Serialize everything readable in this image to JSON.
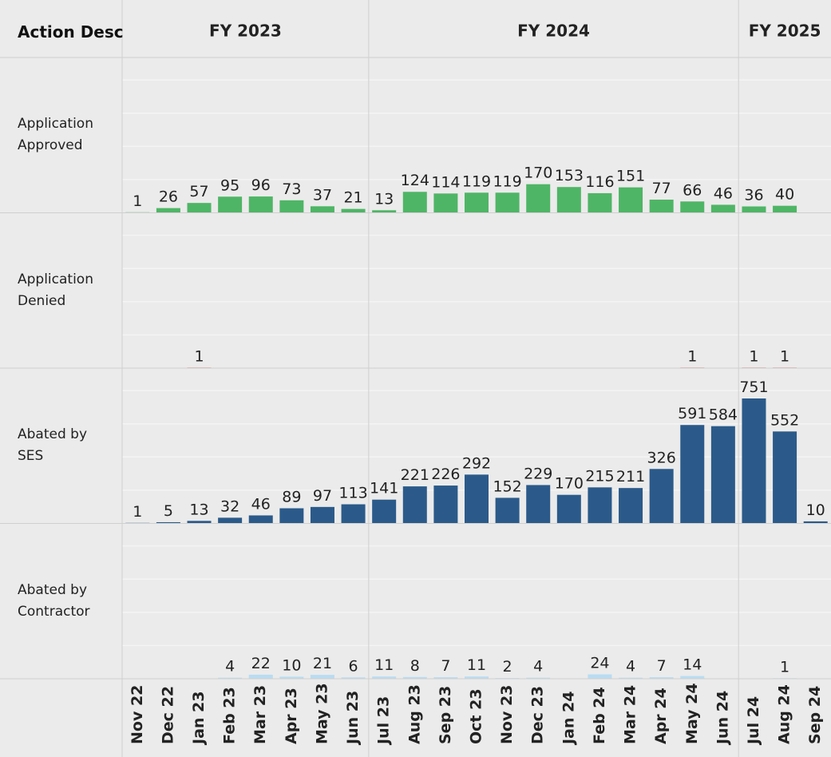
{
  "chart_data": {
    "type": "bar",
    "row_header": "Action Desc",
    "fiscal_years": [
      {
        "label": "FY 2023",
        "span": 8
      },
      {
        "label": "FY 2024",
        "span": 12
      },
      {
        "label": "FY 2025",
        "span": 3
      }
    ],
    "categories": [
      "Nov 22",
      "Dec 22",
      "Jan 23",
      "Feb 23",
      "Mar 23",
      "Apr 23",
      "May 23",
      "Jun 23",
      "Jul 23",
      "Aug 23",
      "Sep 23",
      "Oct 23",
      "Nov 23",
      "Dec 23",
      "Jan 24",
      "Feb 24",
      "Mar 24",
      "Apr 24",
      "May 24",
      "Jun 24",
      "Jul 24",
      "Aug 24",
      "Sep 24"
    ],
    "series": [
      {
        "name": "Application Approved",
        "color": "#4fb566",
        "values": [
          1,
          26,
          57,
          95,
          96,
          73,
          37,
          21,
          13,
          124,
          114,
          119,
          119,
          170,
          153,
          116,
          151,
          77,
          66,
          46,
          36,
          40,
          null
        ]
      },
      {
        "name": "Application Denied",
        "color": "#e15759",
        "values": [
          null,
          null,
          1,
          null,
          null,
          null,
          null,
          null,
          null,
          null,
          null,
          null,
          null,
          null,
          null,
          null,
          null,
          null,
          1,
          null,
          1,
          1,
          null
        ]
      },
      {
        "name": "Abated by SES",
        "color": "#2b5a8a",
        "values": [
          1,
          5,
          13,
          32,
          46,
          89,
          97,
          113,
          141,
          221,
          226,
          292,
          152,
          229,
          170,
          215,
          211,
          326,
          591,
          584,
          751,
          552,
          10
        ]
      },
      {
        "name": "Abated by Contractor",
        "color": "#b9dcf2",
        "values": [
          null,
          null,
          null,
          4,
          22,
          10,
          21,
          6,
          11,
          8,
          7,
          11,
          2,
          4,
          null,
          24,
          4,
          7,
          14,
          null,
          null,
          1,
          null
        ]
      }
    ]
  }
}
